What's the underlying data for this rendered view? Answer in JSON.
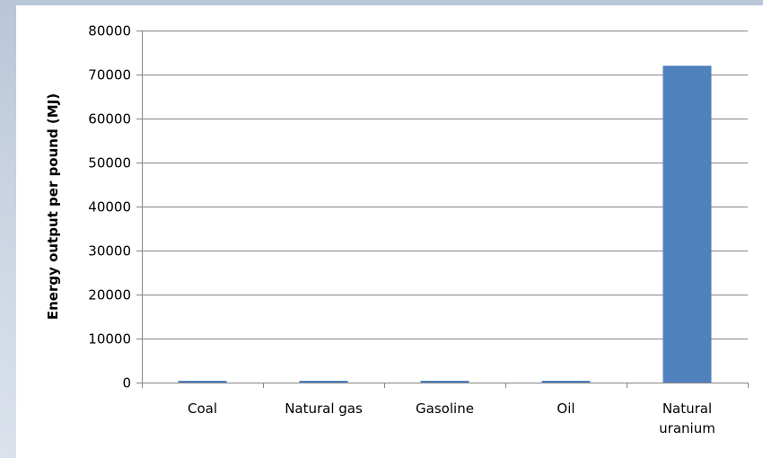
{
  "chart_data": {
    "type": "bar",
    "title": "",
    "xlabel": "",
    "ylabel": "Energy output per pound (MJ)",
    "categories": [
      "Coal",
      "Natural gas",
      "Gasoline",
      "Oil",
      "Natural uranium"
    ],
    "category_lines": [
      [
        "Coal"
      ],
      [
        "Natural gas"
      ],
      [
        "Gasoline"
      ],
      [
        "Oil"
      ],
      [
        "Natural",
        "uranium"
      ]
    ],
    "values": [
      24,
      24,
      24,
      24,
      72000
    ],
    "ylim": [
      0,
      80000
    ],
    "yticks": [
      0,
      10000,
      20000,
      30000,
      40000,
      50000,
      60000,
      70000,
      80000
    ],
    "grid": true,
    "legend": "none",
    "bar_color": "#4f81bd",
    "grid_color": "#868686"
  }
}
